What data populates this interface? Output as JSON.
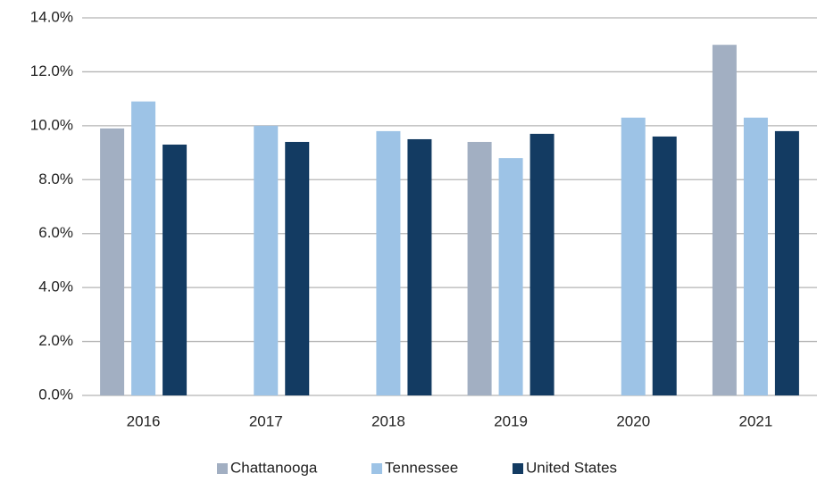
{
  "chart_data": {
    "type": "bar",
    "categories": [
      "2016",
      "2017",
      "2018",
      "2019",
      "2020",
      "2021"
    ],
    "series": [
      {
        "name": "Chattanooga",
        "color": "#a2afc2",
        "values": [
          9.9,
          null,
          null,
          9.4,
          null,
          13.0
        ]
      },
      {
        "name": "Tennessee",
        "color": "#9dc3e6",
        "values": [
          10.9,
          10.0,
          9.8,
          8.8,
          10.3,
          10.3
        ]
      },
      {
        "name": "United States",
        "color": "#133b62",
        "values": [
          9.3,
          9.4,
          9.5,
          9.7,
          9.6,
          9.8
        ]
      }
    ],
    "ylim": [
      0,
      14
    ],
    "yticks": [
      {
        "value": 0,
        "label": "0.0%"
      },
      {
        "value": 2,
        "label": "2.0%"
      },
      {
        "value": 4,
        "label": "4.0%"
      },
      {
        "value": 6,
        "label": "6.0%"
      },
      {
        "value": 8,
        "label": "8.0%"
      },
      {
        "value": 10,
        "label": "10.0%"
      },
      {
        "value": 12,
        "label": "12.0%"
      },
      {
        "value": 14,
        "label": "14.0%"
      }
    ],
    "grid": true,
    "legend": "bottom"
  }
}
